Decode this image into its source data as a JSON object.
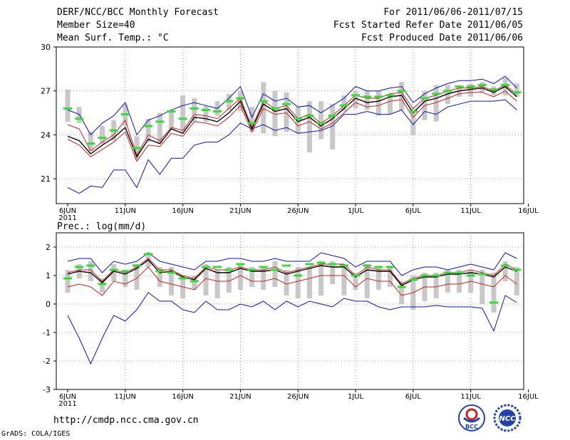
{
  "header": {
    "title": "DERF/NCC/BCC Monthly Forecast",
    "member_size": "Member Size=40",
    "variable_top": "Mean Surf. Temp.: °C",
    "period": "For 2011/06/06-2011/07/15",
    "refer_date": "Fcst Started Refer Date 2011/06/05",
    "produced_date": "Fcst Produced Date 2011/06/06"
  },
  "footer": {
    "url": "http://cmdp.ncc.cma.gov.cn",
    "credit": "GrADS: COLA/IGES",
    "logo_left_text": "BCC",
    "logo_right_text": "NCC"
  },
  "colors": {
    "ensemble_mean": "#000000",
    "upper_inner": "#cc2222",
    "envelope": "#1010c0",
    "member_box": "#c8c8c8",
    "median_marker": "#33dd33",
    "grid": "#999999"
  },
  "chart_data": [
    {
      "type": "line",
      "title": "Mean Surf. Temp.: °C",
      "xlabel": "",
      "ylabel": "",
      "ylim": [
        19.3,
        30
      ],
      "yticks": [
        21,
        24,
        27,
        30
      ],
      "xticks": [
        "6JUN",
        "11JUN",
        "16JUN",
        "21JUN",
        "26JUN",
        "1JUL",
        "6JUL",
        "11JUL",
        "16JUL"
      ],
      "xtick_year": "2011",
      "x": [
        1,
        2,
        3,
        4,
        5,
        6,
        7,
        8,
        9,
        10,
        11,
        12,
        13,
        14,
        15,
        16,
        17,
        18,
        19,
        20,
        21,
        22,
        23,
        24,
        25,
        26,
        27,
        28,
        29,
        30,
        31,
        32,
        33,
        34,
        35,
        36,
        37,
        38,
        39,
        40
      ],
      "series": [
        {
          "name": "max",
          "values": [
            25.7,
            25.4,
            24.0,
            24.8,
            25.3,
            26.2,
            24.0,
            25.0,
            25.3,
            25.7,
            26.0,
            26.2,
            26.0,
            25.8,
            26.5,
            27.3,
            25.2,
            26.8,
            26.3,
            26.5,
            25.9,
            26.0,
            25.5,
            26.0,
            26.5,
            27.3,
            27.0,
            27.0,
            27.2,
            27.3,
            26.2,
            26.8,
            27.2,
            27.5,
            27.7,
            27.7,
            27.8,
            27.5,
            28.0,
            27.2
          ]
        },
        {
          "name": "upper",
          "values": [
            24.7,
            24.4,
            22.9,
            23.5,
            24.0,
            25.0,
            22.6,
            24.0,
            23.6,
            24.5,
            24.3,
            25.4,
            25.3,
            25.1,
            25.8,
            26.5,
            24.5,
            26.3,
            25.8,
            26.0,
            25.1,
            25.4,
            24.8,
            25.3,
            26.0,
            26.7,
            26.5,
            26.5,
            26.8,
            26.9,
            25.8,
            26.5,
            26.7,
            27.0,
            27.2,
            27.2,
            27.3,
            27.0,
            27.4,
            26.8
          ]
        },
        {
          "name": "mean",
          "values": [
            23.9,
            23.6,
            22.7,
            23.3,
            23.8,
            24.5,
            22.5,
            23.7,
            23.4,
            24.4,
            24.1,
            25.2,
            25.1,
            24.9,
            25.5,
            26.3,
            24.4,
            26.1,
            25.6,
            25.8,
            24.9,
            25.2,
            24.6,
            25.1,
            25.8,
            26.5,
            26.2,
            26.3,
            26.6,
            26.7,
            25.5,
            26.3,
            26.5,
            26.8,
            27.0,
            27.1,
            27.2,
            26.9,
            27.3,
            26.6
          ]
        },
        {
          "name": "lower",
          "values": [
            23.7,
            23.3,
            22.5,
            23.0,
            23.5,
            24.2,
            22.2,
            23.3,
            23.2,
            24.1,
            23.9,
            24.9,
            24.8,
            24.6,
            25.2,
            26.0,
            24.2,
            25.8,
            25.4,
            25.5,
            24.6,
            24.9,
            24.4,
            24.8,
            25.5,
            26.2,
            25.9,
            26.0,
            26.3,
            26.4,
            25.2,
            26.0,
            26.2,
            26.5,
            26.8,
            26.9,
            26.9,
            26.6,
            27.0,
            26.3
          ]
        },
        {
          "name": "min",
          "values": [
            20.4,
            20.0,
            20.5,
            20.4,
            21.6,
            21.6,
            20.4,
            22.3,
            21.3,
            22.4,
            22.4,
            23.3,
            23.5,
            23.5,
            24.0,
            24.8,
            24.4,
            24.7,
            24.3,
            24.5,
            24.1,
            24.2,
            24.3,
            24.6,
            25.4,
            25.4,
            25.6,
            25.4,
            25.4,
            25.7,
            24.7,
            25.6,
            25.4,
            25.9,
            26.1,
            26.3,
            26.3,
            26.3,
            26.4,
            25.7
          ]
        },
        {
          "name": "box_top",
          "values": [
            27.1,
            25.9,
            24.2,
            24.6,
            25.0,
            26.1,
            23.9,
            25.1,
            25.5,
            25.6,
            26.7,
            26.5,
            26.0,
            26.3,
            26.8,
            27.0,
            25.9,
            27.6,
            27.0,
            26.9,
            25.9,
            26.3,
            26.3,
            26.1,
            26.7,
            27.0,
            27.0,
            27.0,
            26.8,
            27.6,
            25.8,
            27.0,
            27.4,
            27.4,
            27.3,
            27.5,
            27.6,
            27.3,
            27.9,
            27.5
          ]
        },
        {
          "name": "box_bottom",
          "values": [
            24.9,
            24.8,
            22.9,
            23.4,
            23.6,
            24.6,
            22.3,
            23.5,
            23.4,
            24.4,
            24.2,
            24.9,
            24.9,
            25.3,
            25.7,
            25.6,
            24.2,
            24.1,
            23.9,
            24.2,
            24.1,
            22.8,
            23.7,
            23.0,
            25.6,
            25.8,
            25.7,
            25.3,
            25.4,
            25.7,
            24.0,
            25.0,
            24.9,
            26.1,
            26.6,
            26.6,
            26.9,
            26.7,
            26.7,
            26.6
          ]
        },
        {
          "name": "median",
          "values": [
            25.8,
            25.1,
            23.4,
            23.8,
            24.3,
            25.4,
            23.1,
            24.6,
            24.9,
            25.6,
            25.1,
            25.8,
            25.7,
            25.6,
            26.3,
            26.5,
            24.8,
            26.3,
            25.8,
            26.1,
            25.1,
            25.3,
            24.8,
            25.3,
            26.0,
            26.7,
            26.6,
            26.6,
            26.7,
            27.0,
            25.6,
            26.5,
            26.8,
            27.0,
            27.3,
            27.3,
            27.4,
            27.1,
            27.4,
            26.9
          ]
        }
      ]
    },
    {
      "type": "line",
      "title": "Prec.: log(mm/d)",
      "xlabel": "",
      "ylabel": "",
      "ylim": [
        -3,
        2.5
      ],
      "yticks": [
        -3,
        -2,
        -1,
        0,
        1,
        2
      ],
      "xticks": [
        "6JUN",
        "11JUN",
        "16JUN",
        "21JUN",
        "26JUN",
        "1JUL",
        "6JUL",
        "11JUL",
        "16JUL"
      ],
      "xtick_year": "2011",
      "x": [
        1,
        2,
        3,
        4,
        5,
        6,
        7,
        8,
        9,
        10,
        11,
        12,
        13,
        14,
        15,
        16,
        17,
        18,
        19,
        20,
        21,
        22,
        23,
        24,
        25,
        26,
        27,
        28,
        29,
        30,
        31,
        32,
        33,
        34,
        35,
        36,
        37,
        38,
        39,
        40
      ],
      "series": [
        {
          "name": "max",
          "values": [
            1.5,
            1.6,
            1.6,
            1.1,
            1.5,
            1.4,
            1.5,
            1.8,
            1.5,
            1.4,
            1.3,
            1.2,
            1.5,
            1.5,
            1.6,
            1.6,
            1.5,
            1.5,
            1.6,
            1.5,
            1.5,
            1.5,
            1.8,
            1.7,
            1.6,
            1.3,
            1.5,
            1.5,
            1.5,
            1.0,
            1.2,
            1.3,
            1.3,
            1.2,
            1.3,
            1.4,
            1.3,
            1.2,
            1.8,
            1.6
          ]
        },
        {
          "name": "upper",
          "values": [
            1.1,
            1.2,
            1.2,
            0.8,
            1.2,
            1.1,
            1.3,
            1.6,
            1.2,
            1.2,
            1.0,
            0.9,
            1.3,
            1.2,
            1.2,
            1.3,
            1.2,
            1.2,
            1.3,
            1.1,
            1.2,
            1.3,
            1.4,
            1.4,
            1.4,
            1.0,
            1.3,
            1.2,
            1.2,
            0.7,
            0.9,
            1.0,
            1.0,
            1.1,
            1.1,
            1.2,
            1.1,
            1.0,
            1.4,
            1.2
          ]
        },
        {
          "name": "mean",
          "values": [
            1.05,
            1.15,
            1.1,
            0.75,
            1.15,
            1.05,
            1.25,
            1.55,
            1.1,
            1.15,
            0.95,
            0.85,
            1.25,
            1.1,
            1.1,
            1.25,
            1.15,
            1.15,
            1.2,
            1.05,
            1.15,
            1.25,
            1.35,
            1.3,
            1.3,
            0.95,
            1.2,
            1.15,
            1.15,
            0.65,
            0.85,
            0.95,
            0.95,
            1.05,
            1.05,
            1.1,
            1.05,
            0.95,
            1.3,
            1.15
          ]
        },
        {
          "name": "lower",
          "values": [
            0.6,
            0.7,
            0.6,
            0.3,
            0.8,
            0.7,
            0.9,
            1.3,
            0.8,
            0.7,
            0.6,
            0.5,
            0.9,
            0.8,
            0.8,
            1.0,
            0.8,
            0.8,
            0.9,
            0.7,
            0.8,
            0.9,
            1.0,
            1.0,
            1.0,
            0.6,
            0.9,
            0.8,
            0.8,
            0.3,
            0.4,
            0.6,
            0.6,
            0.7,
            0.7,
            0.8,
            0.7,
            0.6,
            1.0,
            0.7
          ]
        },
        {
          "name": "min",
          "values": [
            -0.4,
            -1.2,
            -2.1,
            -1.2,
            -0.4,
            -0.6,
            -0.2,
            0.4,
            0.1,
            0.1,
            -0.2,
            -0.3,
            0.1,
            -0.2,
            -0.2,
            0.0,
            -0.1,
            0.1,
            -0.2,
            0.1,
            -0.1,
            0.1,
            0.0,
            -0.1,
            0.2,
            0.1,
            0.1,
            -0.1,
            -0.2,
            -0.1,
            -0.1,
            -0.1,
            -0.05,
            -0.1,
            -0.1,
            -0.1,
            -0.15,
            -0.95,
            0.3,
            0.05
          ]
        },
        {
          "name": "box_top",
          "values": [
            1.2,
            1.4,
            1.5,
            0.9,
            1.4,
            1.2,
            1.4,
            1.8,
            1.3,
            1.3,
            1.0,
            1.0,
            1.4,
            1.2,
            1.3,
            1.4,
            1.3,
            1.3,
            1.5,
            1.2,
            1.3,
            1.3,
            1.5,
            1.5,
            1.4,
            1.1,
            1.4,
            1.3,
            1.3,
            0.8,
            1.0,
            1.1,
            1.1,
            1.2,
            1.2,
            1.2,
            1.2,
            1.1,
            1.5,
            1.3
          ]
        },
        {
          "name": "box_bottom",
          "values": [
            0.4,
            0.9,
            0.8,
            0.4,
            0.8,
            0.6,
            0.5,
            1.3,
            0.6,
            0.3,
            0.2,
            0.5,
            0.3,
            0.2,
            0.4,
            0.5,
            0.6,
            0.5,
            0.6,
            0.3,
            0.2,
            0.2,
            0.3,
            0.7,
            0.3,
            0.5,
            0.2,
            0.5,
            0.6,
            0.0,
            -0.2,
            0.1,
            0.2,
            0.4,
            0.4,
            0.4,
            0.0,
            -0.3,
            0.8,
            0.3
          ]
        },
        {
          "name": "median",
          "values": [
            0.9,
            1.3,
            1.35,
            0.7,
            1.2,
            1.15,
            1.35,
            1.75,
            1.15,
            1.1,
            0.9,
            0.8,
            1.3,
            1.3,
            1.2,
            1.4,
            1.2,
            1.3,
            1.2,
            1.35,
            1.0,
            1.4,
            1.45,
            1.4,
            1.35,
            1.0,
            1.35,
            1.3,
            1.3,
            0.6,
            0.85,
            1.0,
            1.0,
            1.1,
            1.1,
            1.0,
            1.05,
            0.05,
            1.35,
            1.2
          ]
        }
      ]
    }
  ]
}
